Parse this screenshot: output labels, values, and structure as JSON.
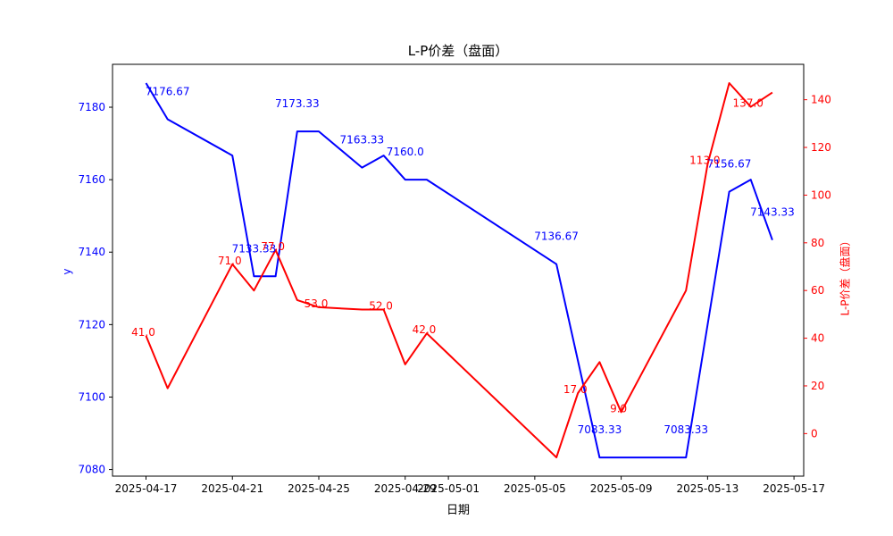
{
  "header": {
    "title": "L-P价差（盘面）"
  },
  "axes": {
    "x_label": "日期",
    "y_left_label": "y",
    "y_right_label": "L-P价差（盘面）"
  },
  "colors": {
    "blue_series": "#0000ff",
    "red_series": "#ff0000",
    "axis_line": "#000000",
    "x_tick_text": "#000000",
    "y_left_tick_text": "#0000ff",
    "y_right_tick_text": "#ff0000",
    "background": "#ffffff"
  },
  "chart_data": {
    "type": "line",
    "title": "L-P价差（盘面）",
    "xlabel": "日期",
    "ylabel_left": "y",
    "ylabel_right": "L-P价差（盘面）",
    "grid": false,
    "legend": "none",
    "x_dates": [
      "2025-04-17",
      "2025-04-18",
      "2025-04-21",
      "2025-04-22",
      "2025-04-23",
      "2025-04-24",
      "2025-04-25",
      "2025-04-27",
      "2025-04-28",
      "2025-04-29",
      "2025-04-30",
      "2025-05-06",
      "2025-05-07",
      "2025-05-08",
      "2025-05-09",
      "2025-05-12",
      "2025-05-13",
      "2025-05-14",
      "2025-05-15",
      "2025-05-16"
    ],
    "x_day_offsets": [
      0,
      1,
      4,
      5,
      6,
      7,
      8,
      10,
      11,
      12,
      13,
      19,
      20,
      21,
      22,
      25,
      26,
      27,
      28,
      29
    ],
    "series": [
      {
        "name": "y",
        "axis": "left",
        "color": "#0000ff",
        "values": [
          7186.67,
          7176.67,
          7166.67,
          7133.33,
          7133.33,
          7173.33,
          7173.33,
          7163.33,
          7166.67,
          7160.0,
          7160.0,
          7136.67,
          7110.0,
          7083.33,
          7083.33,
          7083.33,
          7120.0,
          7156.67,
          7160.0,
          7143.33
        ],
        "point_labels": [
          null,
          "7176.67",
          null,
          "7133.33",
          null,
          "7173.33",
          null,
          "7163.33",
          null,
          "7160.0",
          null,
          "7136.67",
          null,
          "7083.33",
          null,
          "7083.33",
          null,
          "7156.67",
          null,
          "7143.33"
        ]
      },
      {
        "name": "L-P价差（盘面）",
        "axis": "right",
        "color": "#ff0000",
        "values": [
          41.0,
          19.0,
          71.0,
          60.0,
          77.0,
          56.0,
          53.0,
          52.0,
          52.0,
          29.0,
          42.0,
          -10.0,
          17.0,
          30.0,
          9.0,
          60.0,
          113.0,
          147.0,
          137.0,
          143.0
        ],
        "point_labels": [
          "41.0",
          null,
          "71.0",
          null,
          "77.0",
          null,
          "53.0",
          null,
          "52.0",
          null,
          "42.0",
          null,
          "17.0",
          null,
          "9.0",
          null,
          "113.0",
          null,
          "137.0",
          null
        ]
      }
    ],
    "x_ticks": [
      {
        "day": 0,
        "label": "2025-04-17"
      },
      {
        "day": 4,
        "label": "2025-04-21"
      },
      {
        "day": 8,
        "label": "2025-04-25"
      },
      {
        "day": 12,
        "label": "2025-04-29"
      },
      {
        "day": 14,
        "label": "2025-05-01"
      },
      {
        "day": 18,
        "label": "2025-05-05"
      },
      {
        "day": 22,
        "label": "2025-05-09"
      },
      {
        "day": 26,
        "label": "2025-05-13"
      },
      {
        "day": 30,
        "label": "2025-05-17"
      }
    ],
    "y_left": {
      "ticks": [
        7080,
        7100,
        7120,
        7140,
        7160,
        7180
      ],
      "range": [
        7078.17,
        7191.84
      ]
    },
    "y_right": {
      "ticks": [
        0,
        20,
        40,
        60,
        80,
        100,
        120,
        140
      ],
      "range": [
        -17.85,
        154.85
      ]
    },
    "x_range": [
      -1.55,
      30.45
    ]
  }
}
